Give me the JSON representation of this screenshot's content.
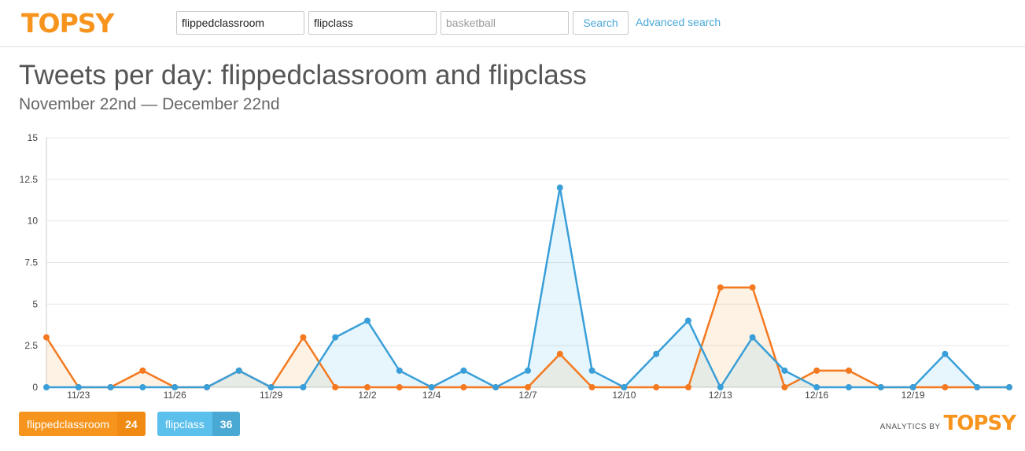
{
  "header": {
    "logo": "TOPSY",
    "search_inputs": [
      {
        "value": "flippedclassroom",
        "placeholder": ""
      },
      {
        "value": "flipclass",
        "placeholder": ""
      },
      {
        "value": "",
        "placeholder": "basketball"
      }
    ],
    "search_label": "Search",
    "advanced_label": "Advanced search"
  },
  "page": {
    "title": "Tweets per day: flippedclassroom and flipclass",
    "subtitle": "November 22nd — December 22nd"
  },
  "legend": [
    {
      "label": "flippedclassroom",
      "count": "24",
      "color": "#f7941d"
    },
    {
      "label": "flipclass",
      "count": "36",
      "color": "#5bc0eb"
    }
  ],
  "footer": {
    "analytics_label": "ANALYTICS BY",
    "logo": "TOPSY"
  },
  "chart_data": {
    "type": "area",
    "title": "Tweets per day: flippedclassroom and flipclass",
    "xlabel": "",
    "ylabel": "",
    "ylim": [
      0,
      15
    ],
    "yticks": [
      "0",
      "2.5",
      "5",
      "7.5",
      "10",
      "12.5",
      "15"
    ],
    "grid": true,
    "x": [
      "11/22",
      "11/23",
      "11/24",
      "11/25",
      "11/26",
      "11/27",
      "11/28",
      "11/29",
      "11/30",
      "12/1",
      "12/2",
      "12/3",
      "12/4",
      "12/5",
      "12/6",
      "12/7",
      "12/8",
      "12/9",
      "12/10",
      "12/11",
      "12/12",
      "12/13",
      "12/14",
      "12/15",
      "12/16",
      "12/17",
      "12/18",
      "12/19",
      "12/20",
      "12/21",
      "12/22"
    ],
    "xtick_labels": [
      "11/23",
      "11/26",
      "11/29",
      "12/2",
      "12/4",
      "12/7",
      "12/10",
      "12/13",
      "12/16",
      "12/19"
    ],
    "series": [
      {
        "name": "flippedclassroom",
        "color": "#f47920",
        "values": [
          3,
          0,
          0,
          1,
          0,
          0,
          1,
          0,
          3,
          0,
          0,
          0,
          0,
          0,
          0,
          0,
          2,
          0,
          0,
          0,
          0,
          6,
          6,
          0,
          1,
          1,
          0,
          0,
          0,
          0,
          0
        ]
      },
      {
        "name": "flipclass",
        "color": "#3a9fd8",
        "values": [
          0,
          0,
          0,
          0,
          0,
          0,
          1,
          0,
          0,
          3,
          4,
          1,
          0,
          1,
          0,
          1,
          12,
          1,
          0,
          2,
          4,
          0,
          3,
          1,
          0,
          0,
          0,
          0,
          2,
          0,
          0
        ]
      }
    ]
  }
}
